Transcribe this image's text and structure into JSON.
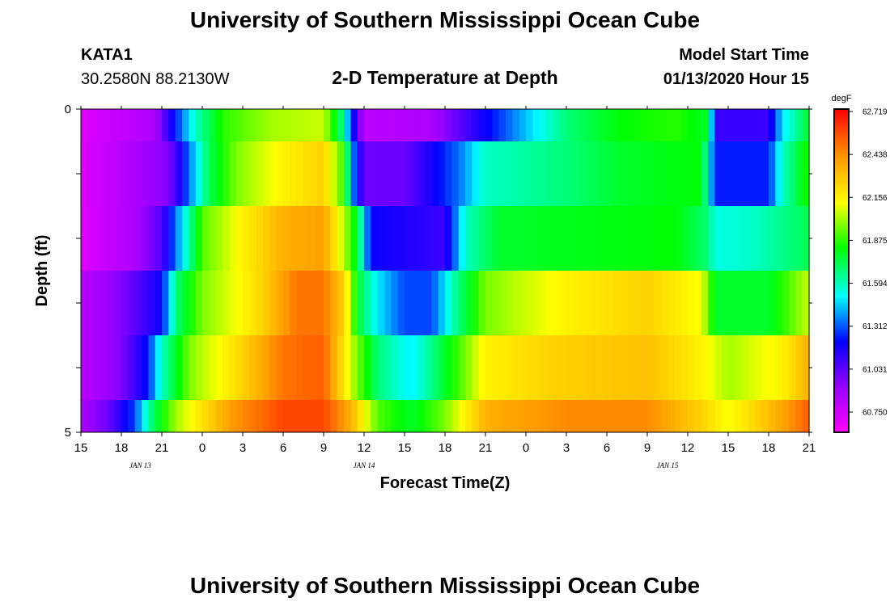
{
  "header": {
    "top_title": "University of Southern Mississippi Ocean Cube",
    "bottom_title": "University of Southern Mississippi Ocean Cube",
    "station": "KATA1",
    "coords": "30.2580N 88.2130W",
    "model_start_label": "Model Start Time",
    "model_start_value": "01/13/2020 Hour 15"
  },
  "chart_data": {
    "type": "heatmap",
    "title": "2-D Temperature at Depth",
    "xlabel": "Forecast Time(Z)",
    "ylabel": "Depth (ft)",
    "y_ticks": [
      "0",
      "5"
    ],
    "ylim": [
      0,
      5
    ],
    "x_tick_labels": [
      "15",
      "18",
      "21",
      "0",
      "3",
      "6",
      "9",
      "12",
      "15",
      "18",
      "21",
      "0",
      "3",
      "6",
      "9",
      "12",
      "15",
      "18",
      "21"
    ],
    "x_hours": [
      0,
      54
    ],
    "date_labels": [
      {
        "text": "JAN 13",
        "hour": 4.4
      },
      {
        "text": "JAN 14",
        "hour": 21
      },
      {
        "text": "JAN 15",
        "hour": 43.5
      }
    ],
    "legend": {
      "unit": "degF",
      "ticks": [
        "62.719",
        "62.438",
        "62.156",
        "61.875",
        "61.594",
        "61.312",
        "61.031",
        "60.750"
      ],
      "min": 60.6,
      "max": 62.8
    },
    "rows": [
      {
        "depth_range": [
          0,
          0.5
        ],
        "keys": [
          [
            0,
            60.7
          ],
          [
            5.5,
            60.85
          ],
          [
            7,
            61.25
          ],
          [
            8.5,
            61.6
          ],
          [
            10.5,
            61.9
          ],
          [
            14,
            62.05
          ],
          [
            18,
            62.1
          ],
          [
            19.3,
            61.7
          ],
          [
            20.2,
            61.2
          ],
          [
            21,
            60.8
          ],
          [
            26,
            60.85
          ],
          [
            30,
            61.2
          ],
          [
            36,
            61.7
          ],
          [
            40,
            61.85
          ],
          [
            44,
            61.9
          ],
          [
            46.5,
            61.8
          ],
          [
            47,
            61.1
          ],
          [
            51,
            61.1
          ],
          [
            52,
            61.5
          ],
          [
            54,
            61.8
          ]
        ]
      },
      {
        "depth_range": [
          0.5,
          1.5
        ],
        "keys": [
          [
            0,
            60.7
          ],
          [
            6.5,
            60.95
          ],
          [
            8,
            61.35
          ],
          [
            9.5,
            61.75
          ],
          [
            11.5,
            62.0
          ],
          [
            15,
            62.2
          ],
          [
            18,
            62.3
          ],
          [
            19.5,
            61.9
          ],
          [
            20.2,
            61.35
          ],
          [
            21,
            61.0
          ],
          [
            24,
            61.0
          ],
          [
            28,
            61.35
          ],
          [
            30,
            61.6
          ],
          [
            36,
            61.7
          ],
          [
            40,
            61.8
          ],
          [
            46,
            61.85
          ],
          [
            47,
            61.25
          ],
          [
            51,
            61.25
          ],
          [
            52,
            61.6
          ],
          [
            54,
            61.9
          ]
        ]
      },
      {
        "depth_range": [
          1.5,
          2.5
        ],
        "keys": [
          [
            0,
            60.7
          ],
          [
            4,
            60.85
          ],
          [
            6,
            61.05
          ],
          [
            7.5,
            61.5
          ],
          [
            9,
            61.95
          ],
          [
            12,
            62.2
          ],
          [
            15,
            62.4
          ],
          [
            18,
            62.45
          ],
          [
            20.5,
            61.8
          ],
          [
            21.5,
            61.2
          ],
          [
            27,
            61.1
          ],
          [
            28.5,
            61.6
          ],
          [
            31,
            61.8
          ],
          [
            44,
            61.85
          ],
          [
            46.5,
            61.7
          ],
          [
            47,
            61.55
          ],
          [
            50,
            61.6
          ],
          [
            54,
            61.75
          ]
        ]
      },
      {
        "depth_range": [
          2.5,
          3.5
        ],
        "keys": [
          [
            0,
            60.8
          ],
          [
            3,
            60.95
          ],
          [
            6,
            61.2
          ],
          [
            7,
            61.7
          ],
          [
            9,
            62.0
          ],
          [
            13,
            62.25
          ],
          [
            16,
            62.55
          ],
          [
            18,
            62.55
          ],
          [
            19.5,
            62.3
          ],
          [
            20.5,
            61.8
          ],
          [
            22,
            61.5
          ],
          [
            24,
            61.3
          ],
          [
            26,
            61.3
          ],
          [
            28,
            61.7
          ],
          [
            30,
            62.0
          ],
          [
            36,
            62.2
          ],
          [
            42,
            62.3
          ],
          [
            46,
            62.15
          ],
          [
            47,
            61.8
          ],
          [
            51,
            61.8
          ],
          [
            54,
            62.1
          ]
        ]
      },
      {
        "depth_range": [
          3.5,
          4.5
        ],
        "keys": [
          [
            0,
            60.8
          ],
          [
            3,
            60.95
          ],
          [
            5,
            61.25
          ],
          [
            6,
            61.6
          ],
          [
            8,
            62.0
          ],
          [
            12,
            62.3
          ],
          [
            15,
            62.55
          ],
          [
            18,
            62.6
          ],
          [
            20,
            62.1
          ],
          [
            22,
            61.7
          ],
          [
            24.5,
            61.5
          ],
          [
            27,
            61.8
          ],
          [
            30,
            62.2
          ],
          [
            35,
            62.3
          ],
          [
            42,
            62.35
          ],
          [
            46,
            62.2
          ],
          [
            48,
            62.05
          ],
          [
            52,
            62.2
          ],
          [
            54,
            62.4
          ]
        ]
      },
      {
        "depth_range": [
          4.5,
          5
        ],
        "keys": [
          [
            0,
            60.85
          ],
          [
            2,
            61.0
          ],
          [
            4,
            61.3
          ],
          [
            5,
            61.65
          ],
          [
            7,
            62.05
          ],
          [
            11,
            62.45
          ],
          [
            15,
            62.65
          ],
          [
            18,
            62.65
          ],
          [
            20,
            62.4
          ],
          [
            22,
            61.95
          ],
          [
            24.5,
            61.8
          ],
          [
            27,
            62.0
          ],
          [
            30,
            62.4
          ],
          [
            36,
            62.5
          ],
          [
            42,
            62.5
          ],
          [
            46,
            62.3
          ],
          [
            48,
            62.15
          ],
          [
            51,
            62.35
          ],
          [
            54,
            62.6
          ]
        ]
      }
    ]
  }
}
